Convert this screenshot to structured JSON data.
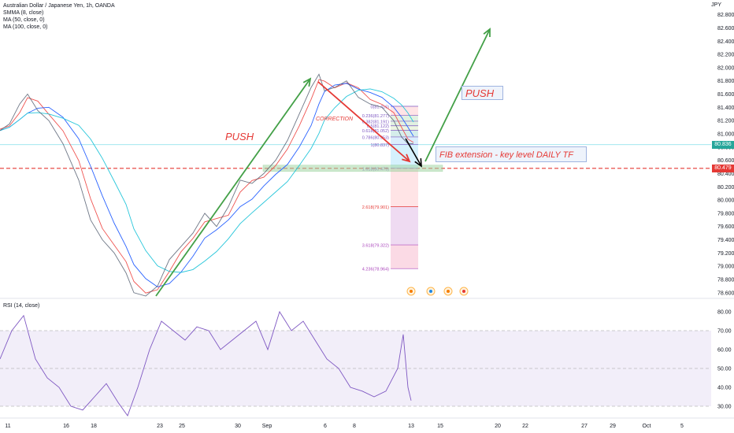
{
  "legend": {
    "title": "Australian Dollar / Japanese Yen, 1h, OANDA",
    "smma": "SMMA (8, close)",
    "ma50": "MA (50, close, 0)",
    "ma100": "MA (100, close, 0)",
    "rsi": "RSI (14, close)"
  },
  "currency_label": "JPY",
  "price_badges": {
    "last": {
      "text": "80.836",
      "color": "#26a69a"
    },
    "level": {
      "text": "80.479",
      "color": "#e53935"
    }
  },
  "annotations": {
    "push_left": "PUSH",
    "push_right": "PUSH",
    "correction": "CORRECTION",
    "fib_note": "FIB extension - key level DAILY TF"
  },
  "chart_data": [
    {
      "type": "line",
      "title": "Australian Dollar / Japanese Yen, 1h, OANDA",
      "y_ticks": [
        "82.800",
        "82.600",
        "82.400",
        "82.200",
        "82.000",
        "81.800",
        "81.600",
        "81.400",
        "81.200",
        "81.000",
        "80.800",
        "80.600",
        "80.400",
        "80.200",
        "80.000",
        "79.800",
        "79.600",
        "79.400",
        "79.200",
        "79.000",
        "78.800",
        "78.600"
      ],
      "ylim": [
        78.55,
        82.95
      ],
      "x_ticks": [
        "11",
        "16",
        "18",
        "23",
        "25",
        "30",
        "Sep",
        "6",
        "8",
        "13",
        "15",
        "20",
        "22",
        "27",
        "29",
        "Oct",
        "5"
      ],
      "series": [
        {
          "name": "SMMA (8, close)",
          "color": "#ef5350"
        },
        {
          "name": "MA (50, close, 0)",
          "color": "#2962ff"
        },
        {
          "name": "MA (100, close, 0)",
          "color": "#26c6da"
        }
      ],
      "price_path": [
        [
          0,
          81.05
        ],
        [
          12,
          81.15
        ],
        [
          25,
          81.45
        ],
        [
          35,
          81.6
        ],
        [
          48,
          81.35
        ],
        [
          62,
          81.2
        ],
        [
          80,
          80.85
        ],
        [
          100,
          80.3
        ],
        [
          115,
          79.7
        ],
        [
          130,
          79.4
        ],
        [
          145,
          79.2
        ],
        [
          160,
          78.9
        ],
        [
          170,
          78.6
        ],
        [
          185,
          78.55
        ],
        [
          200,
          78.7
        ],
        [
          215,
          79.1
        ],
        [
          230,
          79.3
        ],
        [
          245,
          79.5
        ],
        [
          260,
          79.8
        ],
        [
          275,
          79.6
        ],
        [
          290,
          79.9
        ],
        [
          305,
          80.3
        ],
        [
          320,
          80.25
        ],
        [
          335,
          80.4
        ],
        [
          350,
          80.6
        ],
        [
          365,
          80.9
        ],
        [
          380,
          81.3
        ],
        [
          395,
          81.7
        ],
        [
          405,
          81.9
        ],
        [
          412,
          81.65
        ],
        [
          425,
          81.7
        ],
        [
          440,
          81.8
        ],
        [
          455,
          81.55
        ],
        [
          470,
          81.45
        ],
        [
          485,
          81.4
        ],
        [
          500,
          81.2
        ],
        [
          510,
          80.95
        ],
        [
          518,
          80.85
        ],
        [
          525,
          80.85
        ]
      ],
      "fib_levels": [
        {
          "label": "0(81.416)",
          "value": 81.416
        },
        {
          "label": "0.236(81.277)",
          "value": 81.277
        },
        {
          "label": "0.382(81.191)",
          "value": 81.191
        },
        {
          "label": "0.5(81.122)",
          "value": 81.122
        },
        {
          "label": "0.618(81.052)",
          "value": 81.052
        },
        {
          "label": "0.786(80.953)",
          "value": 80.953
        },
        {
          "label": "1(80.837)",
          "value": 80.837
        },
        {
          "label": "1.618(80.479)",
          "value": 80.479
        },
        {
          "label": "2.618(79.901)",
          "value": 79.901
        },
        {
          "label": "3.618(79.322)",
          "value": 79.322
        },
        {
          "label": "4.236(78.964)",
          "value": 78.964
        }
      ],
      "horizontal_levels": {
        "last": 80.836,
        "key_level": 80.479
      }
    },
    {
      "type": "line",
      "title": "RSI (14, close)",
      "y_ticks": [
        "80.00",
        "70.00",
        "60.00",
        "50.00",
        "40.00",
        "30.00"
      ],
      "ylim": [
        25,
        85
      ],
      "bands": {
        "upper": 70,
        "middle": 50,
        "lower": 30
      },
      "rsi_path": [
        [
          0,
          55
        ],
        [
          15,
          70
        ],
        [
          30,
          78
        ],
        [
          45,
          55
        ],
        [
          60,
          45
        ],
        [
          75,
          40
        ],
        [
          90,
          30
        ],
        [
          105,
          28
        ],
        [
          120,
          35
        ],
        [
          135,
          42
        ],
        [
          150,
          32
        ],
        [
          162,
          25
        ],
        [
          175,
          40
        ],
        [
          190,
          60
        ],
        [
          205,
          75
        ],
        [
          220,
          70
        ],
        [
          235,
          65
        ],
        [
          250,
          72
        ],
        [
          265,
          70
        ],
        [
          280,
          60
        ],
        [
          295,
          65
        ],
        [
          310,
          70
        ],
        [
          325,
          75
        ],
        [
          340,
          60
        ],
        [
          355,
          80
        ],
        [
          370,
          70
        ],
        [
          385,
          75
        ],
        [
          400,
          65
        ],
        [
          415,
          55
        ],
        [
          430,
          50
        ],
        [
          445,
          40
        ],
        [
          460,
          38
        ],
        [
          475,
          35
        ],
        [
          490,
          38
        ],
        [
          505,
          50
        ],
        [
          512,
          68
        ],
        [
          518,
          40
        ],
        [
          522,
          33
        ]
      ]
    }
  ]
}
